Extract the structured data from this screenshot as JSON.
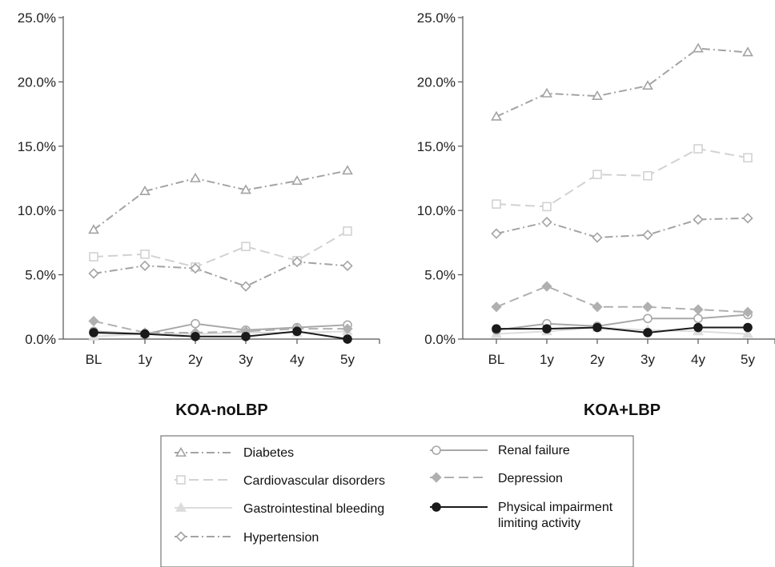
{
  "chart_data": [
    {
      "type": "line",
      "title": "KOA-noLBP",
      "categories": [
        "BL",
        "1y",
        "2y",
        "3y",
        "4y",
        "5y"
      ],
      "ylim": [
        0,
        25
      ],
      "yticks": [
        "0.0%",
        "5.0%",
        "10.0%",
        "15.0%",
        "20.0%",
        "25.0%"
      ],
      "series": [
        {
          "name": "Diabetes",
          "values": [
            8.5,
            11.5,
            12.5,
            11.6,
            12.3,
            13.1
          ]
        },
        {
          "name": "Cardiovascular disorders",
          "values": [
            6.4,
            6.6,
            5.6,
            7.2,
            6.1,
            8.4
          ]
        },
        {
          "name": "Gastrointestinal bleeding",
          "values": [
            0.2,
            0.4,
            0.4,
            0.5,
            0.5,
            0.6
          ]
        },
        {
          "name": "Hypertension",
          "values": [
            5.1,
            5.7,
            5.5,
            4.1,
            6.0,
            5.7
          ]
        },
        {
          "name": "Renal failure",
          "values": [
            0.6,
            0.4,
            1.2,
            0.7,
            0.9,
            1.1
          ]
        },
        {
          "name": "Depression",
          "values": [
            1.4,
            0.5,
            0.5,
            0.6,
            0.8,
            0.8
          ]
        },
        {
          "name": "Physical impairment limiting activity",
          "values": [
            0.5,
            0.4,
            0.2,
            0.2,
            0.6,
            0.0
          ]
        }
      ]
    },
    {
      "type": "line",
      "title": "KOA+LBP",
      "categories": [
        "BL",
        "1y",
        "2y",
        "3y",
        "4y",
        "5y"
      ],
      "ylim": [
        0,
        25
      ],
      "yticks": [
        "0.0%",
        "5.0%",
        "10.0%",
        "15.0%",
        "20.0%",
        "25.0%"
      ],
      "series": [
        {
          "name": "Diabetes",
          "values": [
            17.3,
            19.1,
            18.9,
            19.7,
            22.6,
            22.3
          ]
        },
        {
          "name": "Cardiovascular disorders",
          "values": [
            10.5,
            10.3,
            12.8,
            12.7,
            14.8,
            14.1
          ]
        },
        {
          "name": "Gastrointestinal bleeding",
          "values": [
            0.4,
            0.6,
            0.9,
            0.7,
            0.6,
            0.4
          ]
        },
        {
          "name": "Hypertension",
          "values": [
            8.2,
            9.1,
            7.9,
            8.1,
            9.3,
            9.4
          ]
        },
        {
          "name": "Renal failure",
          "values": [
            0.7,
            1.2,
            1.0,
            1.6,
            1.6,
            1.9
          ]
        },
        {
          "name": "Depression",
          "values": [
            2.5,
            4.1,
            2.5,
            2.5,
            2.3,
            2.1
          ]
        },
        {
          "name": "Physical impairment limiting activity",
          "values": [
            0.8,
            0.8,
            0.9,
            0.5,
            0.9,
            0.9
          ]
        }
      ]
    }
  ],
  "legend": {
    "entries": [
      {
        "key": "diabetes",
        "label": "Diabetes"
      },
      {
        "key": "cardio",
        "label": "Cardiovascular disorders"
      },
      {
        "key": "gi",
        "label": "Gastrointestinal bleeding"
      },
      {
        "key": "hyper",
        "label": "Hypertension"
      },
      {
        "key": "renal",
        "label": "Renal failure"
      },
      {
        "key": "depression",
        "label": "Depression"
      },
      {
        "key": "physical",
        "label": "Physical impairment limiting activity"
      }
    ]
  },
  "styles": {
    "Diabetes": {
      "color": "#a3a3a3",
      "dash": "10 4 2 4",
      "marker": "triangle"
    },
    "Cardiovascular disorders": {
      "color": "#d2d2d2",
      "dash": "12 6",
      "marker": "square"
    },
    "Gastrointestinal bleeding": {
      "color": "#dcdcdc",
      "dash": "none",
      "marker": "filled-triangle"
    },
    "Hypertension": {
      "color": "#a3a3a3",
      "dash": "10 4 2 4",
      "marker": "diamond"
    },
    "Renal failure": {
      "color": "#a8a8a8",
      "dash": "none",
      "marker": "circle"
    },
    "Depression": {
      "color": "#b0b0b0",
      "dash": "12 6",
      "marker": "filled-diamond"
    },
    "Physical impairment limiting activity": {
      "color": "#1a1a1a",
      "dash": "none",
      "marker": "filled-circle"
    }
  }
}
